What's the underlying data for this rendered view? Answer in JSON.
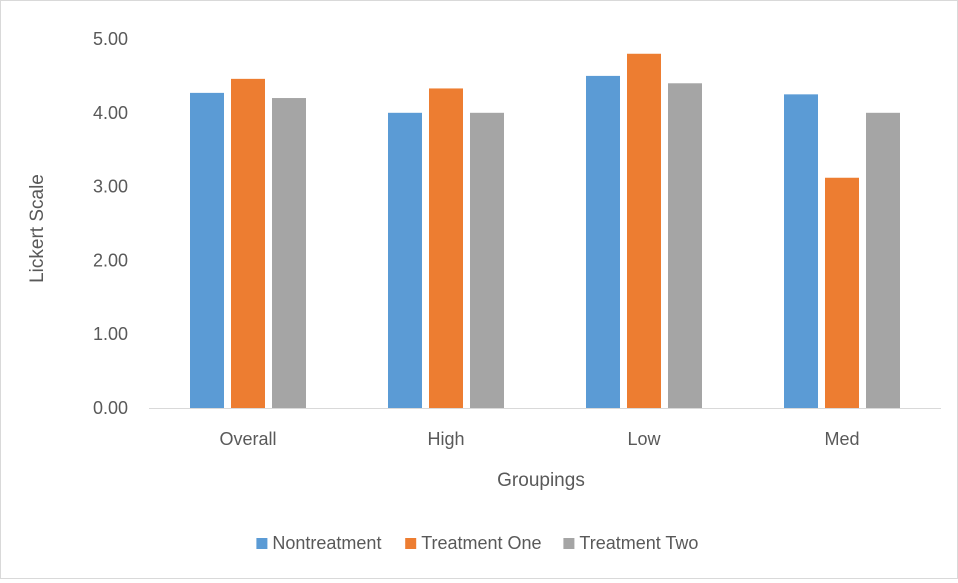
{
  "chart_data": {
    "type": "bar",
    "title": "",
    "xlabel": "Groupings",
    "ylabel": "Lickert Scale",
    "ylim": [
      0,
      5
    ],
    "yticks": [
      "0.00",
      "1.00",
      "2.00",
      "3.00",
      "4.00",
      "5.00"
    ],
    "categories": [
      "Overall",
      "High",
      "Low",
      "Med"
    ],
    "series": [
      {
        "name": "Nontreatment",
        "color": "#5b9bd5",
        "values": [
          4.27,
          4.0,
          4.5,
          4.25
        ]
      },
      {
        "name": "Treatment One",
        "color": "#ed7d31",
        "values": [
          4.46,
          4.33,
          4.8,
          3.12
        ]
      },
      {
        "name": "Treatment Two",
        "color": "#a5a5a5",
        "values": [
          4.2,
          4.0,
          4.4,
          4.0
        ]
      }
    ],
    "grid": false,
    "legend_position": "bottom"
  }
}
